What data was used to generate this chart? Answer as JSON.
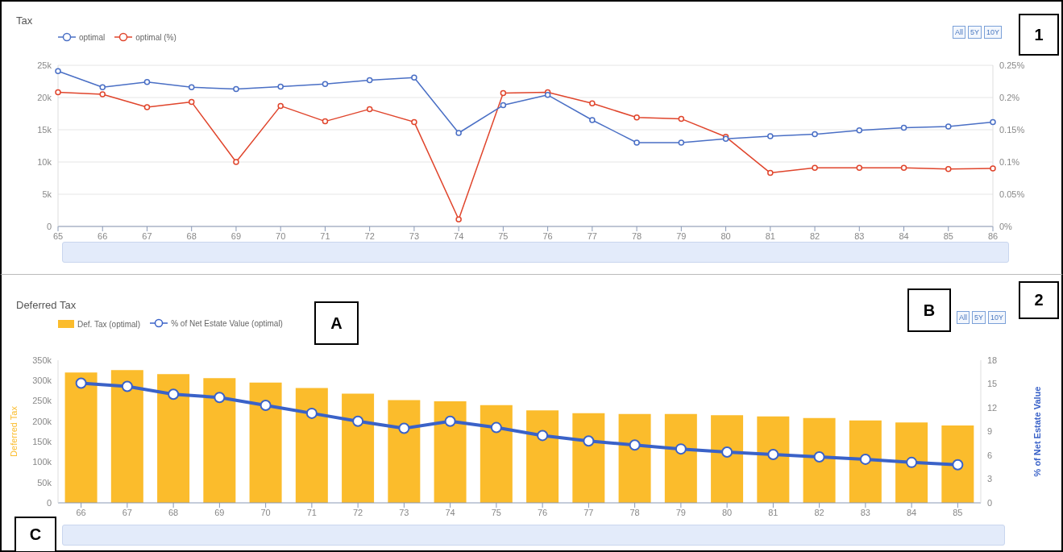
{
  "chart_data": [
    {
      "type": "line",
      "title": "Tax",
      "categories": [
        "65",
        "66",
        "67",
        "68",
        "69",
        "70",
        "71",
        "72",
        "73",
        "74",
        "75",
        "76",
        "77",
        "78",
        "79",
        "80",
        "81",
        "82",
        "83",
        "84",
        "85",
        "86"
      ],
      "series": [
        {
          "name": "optimal",
          "color": "#4a6fc5",
          "values": [
            24100,
            21600,
            22400,
            21600,
            21300,
            21700,
            22100,
            22700,
            23100,
            14500,
            18800,
            20400,
            16500,
            13000,
            13000,
            13600,
            14000,
            14300,
            14900,
            15300,
            15500,
            16200
          ]
        },
        {
          "name": "optimal (%)",
          "color": "#e0452c",
          "axis": "y2",
          "values": [
            0.208,
            0.205,
            0.185,
            0.193,
            0.1,
            0.187,
            0.163,
            0.182,
            0.162,
            0.011,
            0.207,
            0.208,
            0.191,
            0.169,
            0.167,
            0.139,
            0.083,
            0.091,
            0.091,
            0.091,
            0.089,
            0.09
          ]
        }
      ],
      "ylim": [
        0,
        25000
      ],
      "yticks": [
        0,
        {
          "value": 5000,
          "label": "5k"
        },
        {
          "value": 10000,
          "label": "10k"
        },
        {
          "value": 15000,
          "label": "15k"
        },
        {
          "value": 20000,
          "label": "20k"
        },
        {
          "value": 25000,
          "label": "25k"
        }
      ],
      "y2lim": [
        0,
        0.25
      ],
      "y2ticks": [
        {
          "value": 0,
          "label": "0%"
        },
        {
          "value": 0.05,
          "label": "0.05%"
        },
        {
          "value": 0.1,
          "label": "0.1%"
        },
        {
          "value": 0.15,
          "label": "0.15%"
        },
        {
          "value": 0.2,
          "label": "0.2%"
        },
        {
          "value": 0.25,
          "label": "0.25%"
        }
      ],
      "grid": "y",
      "legend": "top left",
      "marker": "circle",
      "line_style": "solid",
      "annotations": [
        "All",
        "5Y",
        "10Y",
        "1"
      ]
    },
    {
      "type": "bar",
      "title": "Deferred Tax",
      "ylabel": "Deferred Tax",
      "y2label": "% of Net Estate Value",
      "categories": [
        "66",
        "67",
        "68",
        "69",
        "70",
        "71",
        "72",
        "73",
        "74",
        "75",
        "76",
        "77",
        "78",
        "79",
        "80",
        "81",
        "82",
        "83",
        "84",
        "85"
      ],
      "series": [
        {
          "name": "Def. Tax (optimal)",
          "color": "#fbbc2c",
          "values": [
            320000,
            326000,
            316000,
            306000,
            295000,
            282000,
            268000,
            252000,
            249000,
            240000,
            227000,
            220000,
            218000,
            218000,
            215000,
            212000,
            208000,
            202000,
            197000,
            190000
          ]
        },
        {
          "name": "% of Net Estate Value (optimal)",
          "type": "line",
          "color": "#3a62c8",
          "axis": "y2",
          "marker": "circle",
          "values": [
            15.1,
            14.7,
            13.7,
            13.3,
            12.3,
            11.3,
            10.3,
            9.4,
            10.3,
            9.5,
            8.5,
            7.8,
            7.3,
            6.8,
            6.4,
            6.1,
            5.8,
            5.5,
            5.1,
            4.8
          ]
        }
      ],
      "ylim": [
        0,
        350000
      ],
      "yticks": [
        0,
        {
          "value": 50000,
          "label": "50k"
        },
        {
          "value": 100000,
          "label": "100k"
        },
        {
          "value": 150000,
          "label": "150k"
        },
        {
          "value": 200000,
          "label": "200k"
        },
        {
          "value": 250000,
          "label": "250k"
        },
        {
          "value": 300000,
          "label": "300k"
        },
        {
          "value": 350000,
          "label": "350k"
        }
      ],
      "y2lim": [
        0,
        18
      ],
      "y2ticks": [
        0,
        3,
        6,
        9,
        12,
        15,
        18
      ],
      "grid": false,
      "legend": "top left",
      "annotations": [
        "All",
        "5Y",
        "10Y",
        "A",
        "B",
        "C",
        "2"
      ]
    }
  ]
}
